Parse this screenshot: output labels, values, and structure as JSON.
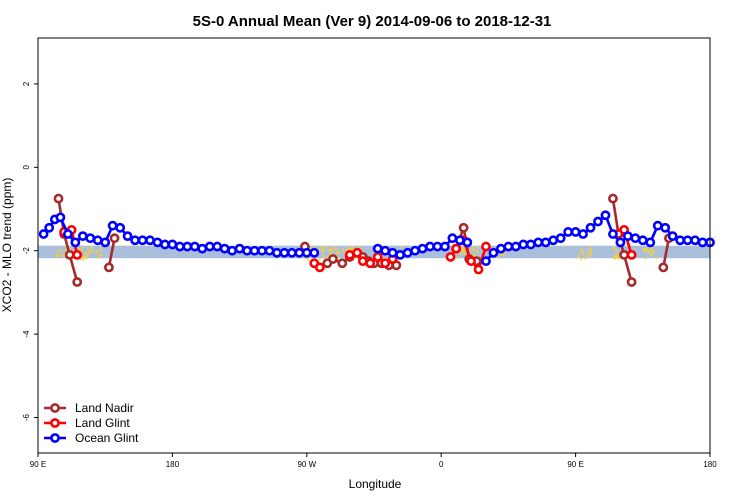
{
  "chart_data": {
    "type": "line",
    "title": "5S-0 Annual Mean (Ver 9)   2014-09-06 to 2018-12-31",
    "xlabel": "Longitude",
    "ylabel": "XCO2 - MLO trend (ppm)",
    "xlim": [
      90,
      450
    ],
    "ylim": [
      -6.85,
      3.1
    ],
    "x_ticks": [
      90,
      162,
      234,
      306,
      378,
      450
    ],
    "x_tick_labels": [
      "90 E",
      "180",
      "90 W",
      "0",
      "90 E",
      "180"
    ],
    "y_ticks": [
      -6,
      -4,
      -2,
      0,
      2
    ],
    "y_tick_labels": [
      "-6",
      "-4",
      "-2",
      "0",
      "2"
    ],
    "band": {
      "color": "#a9bfdb",
      "y_top": -1.88,
      "y_bottom": -2.18
    },
    "land_patches": [
      {
        "x": [
          99,
          107
        ],
        "color": "#f4d03f"
      },
      {
        "x": [
          111,
          124
        ],
        "color": "#f4d03f"
      },
      {
        "x": [
          232,
          247
        ],
        "color": "#f4d03f"
      },
      {
        "x": [
          248,
          264
        ],
        "color": "#f4d03f"
      },
      {
        "x": [
          280,
          285
        ],
        "color": "#f4d03f"
      },
      {
        "x": [
          314,
          327
        ],
        "color": "#f4d03f"
      },
      {
        "x": [
          332,
          340
        ],
        "color": "#f4d03f"
      },
      {
        "x": [
          379,
          386
        ],
        "color": "#f4d03f"
      },
      {
        "x": [
          397,
          402
        ],
        "color": "#f4d03f"
      },
      {
        "x": [
          414,
          421
        ],
        "color": "#f4d03f"
      }
    ],
    "legend_position": "bottom-left",
    "series": [
      {
        "name": "Land Nadir",
        "color": "#a52a2a",
        "segments": [
          [
            [
              101,
              -0.75
            ],
            [
              104,
              -1.6
            ],
            [
              107,
              -2.1
            ],
            [
              111,
              -2.75
            ]
          ],
          [
            [
              128,
              -2.4
            ],
            [
              131,
              -1.7
            ]
          ],
          [
            [
              233,
              -1.9
            ]
          ],
          [
            [
              245,
              -2.3
            ],
            [
              248,
              -2.2
            ],
            [
              253,
              -2.3
            ],
            [
              257,
              -2.15
            ],
            [
              261,
              -2.05
            ],
            [
              264,
              -2.15
            ],
            [
              267,
              -2.25
            ],
            [
              270,
              -2.3
            ],
            [
              274,
              -2.3
            ],
            [
              278,
              -2.35
            ],
            [
              282,
              -2.35
            ]
          ],
          [
            [
              314,
              -1.95
            ],
            [
              318,
              -1.45
            ],
            [
              321,
              -2.2
            ],
            [
              325,
              -2.25
            ]
          ],
          [
            [
              398,
              -0.75
            ],
            [
              401,
              -1.6
            ],
            [
              404,
              -2.1
            ],
            [
              408,
              -2.75
            ]
          ],
          [
            [
              425,
              -2.4
            ],
            [
              428,
              -1.7
            ]
          ]
        ]
      },
      {
        "name": "Land Glint",
        "color": "#ff0000",
        "segments": [
          [
            [
              104,
              -1.55
            ],
            [
              108,
              -1.5
            ],
            [
              111,
              -2.1
            ]
          ],
          [
            [
              238,
              -2.3
            ],
            [
              241,
              -2.4
            ]
          ],
          [
            [
              257,
              -2.1
            ],
            [
              261,
              -2.05
            ],
            [
              264,
              -2.25
            ],
            [
              268,
              -2.3
            ],
            [
              272,
              -2.15
            ],
            [
              276,
              -2.3
            ],
            [
              280,
              -2.2
            ]
          ],
          [
            [
              311,
              -2.15
            ],
            [
              314,
              -1.95
            ],
            [
              318,
              -1.75
            ],
            [
              322,
              -2.25
            ],
            [
              326,
              -2.45
            ],
            [
              330,
              -1.9
            ]
          ],
          [
            [
              401,
              -1.6
            ],
            [
              404,
              -1.5
            ],
            [
              408,
              -2.1
            ]
          ]
        ]
      },
      {
        "name": "Ocean Glint",
        "color": "#0000ff",
        "segments": [
          [
            [
              93,
              -1.6
            ],
            [
              96,
              -1.45
            ],
            [
              99,
              -1.25
            ],
            [
              102,
              -1.2
            ],
            [
              106,
              -1.6
            ],
            [
              110,
              -1.8
            ],
            [
              114,
              -1.65
            ],
            [
              118,
              -1.7
            ],
            [
              122,
              -1.75
            ],
            [
              126,
              -1.8
            ],
            [
              130,
              -1.4
            ],
            [
              134,
              -1.45
            ],
            [
              138,
              -1.65
            ],
            [
              142,
              -1.75
            ],
            [
              146,
              -1.75
            ],
            [
              150,
              -1.75
            ],
            [
              154,
              -1.8
            ],
            [
              158,
              -1.85
            ],
            [
              162,
              -1.85
            ],
            [
              166,
              -1.9
            ],
            [
              170,
              -1.9
            ],
            [
              174,
              -1.9
            ],
            [
              178,
              -1.95
            ],
            [
              182,
              -1.9
            ],
            [
              186,
              -1.9
            ],
            [
              190,
              -1.95
            ],
            [
              194,
              -2.0
            ],
            [
              198,
              -1.95
            ],
            [
              202,
              -2.0
            ],
            [
              206,
              -2.0
            ],
            [
              210,
              -2.0
            ],
            [
              214,
              -2.0
            ],
            [
              218,
              -2.05
            ],
            [
              222,
              -2.05
            ],
            [
              226,
              -2.05
            ],
            [
              230,
              -2.05
            ],
            [
              234,
              -2.05
            ],
            [
              238,
              -2.05
            ]
          ],
          [
            [
              272,
              -1.95
            ],
            [
              276,
              -2.0
            ],
            [
              280,
              -2.05
            ],
            [
              284,
              -2.1
            ],
            [
              288,
              -2.05
            ],
            [
              292,
              -2.0
            ],
            [
              296,
              -1.95
            ],
            [
              300,
              -1.9
            ],
            [
              304,
              -1.9
            ],
            [
              308,
              -1.9
            ],
            [
              312,
              -1.7
            ],
            [
              316,
              -1.75
            ],
            [
              320,
              -1.8
            ]
          ],
          [
            [
              330,
              -2.25
            ],
            [
              334,
              -2.05
            ],
            [
              338,
              -1.95
            ],
            [
              342,
              -1.9
            ],
            [
              346,
              -1.9
            ],
            [
              350,
              -1.85
            ],
            [
              354,
              -1.85
            ],
            [
              358,
              -1.8
            ],
            [
              362,
              -1.8
            ],
            [
              366,
              -1.75
            ],
            [
              370,
              -1.7
            ],
            [
              374,
              -1.55
            ],
            [
              378,
              -1.55
            ],
            [
              382,
              -1.6
            ],
            [
              386,
              -1.45
            ],
            [
              390,
              -1.3
            ],
            [
              394,
              -1.15
            ],
            [
              398,
              -1.6
            ],
            [
              402,
              -1.8
            ],
            [
              406,
              -1.65
            ],
            [
              410,
              -1.7
            ],
            [
              414,
              -1.75
            ],
            [
              418,
              -1.8
            ],
            [
              422,
              -1.4
            ],
            [
              426,
              -1.45
            ],
            [
              430,
              -1.65
            ],
            [
              434,
              -1.75
            ],
            [
              438,
              -1.75
            ],
            [
              442,
              -1.75
            ],
            [
              446,
              -1.8
            ],
            [
              450,
              -1.8
            ]
          ]
        ]
      }
    ]
  }
}
